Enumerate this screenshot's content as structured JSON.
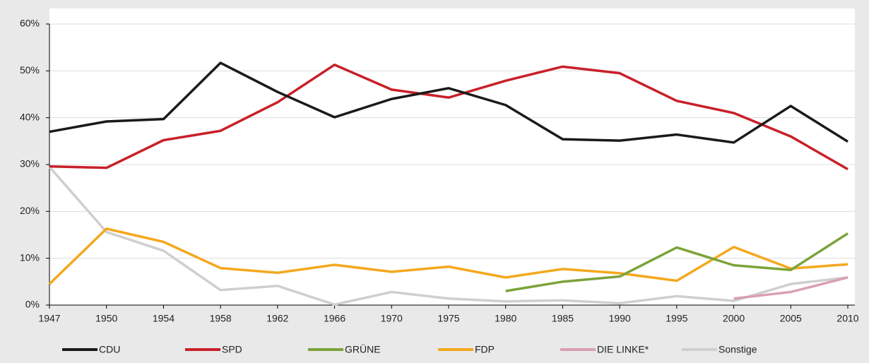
{
  "chart_data": {
    "type": "line",
    "categories": [
      "1947",
      "1950",
      "1954",
      "1958",
      "1962",
      "1966",
      "1970",
      "1975",
      "1980",
      "1985",
      "1990",
      "1995",
      "2000",
      "2005",
      "2010"
    ],
    "series": [
      {
        "name": "CDU",
        "color": "#1a1a1a",
        "values": [
          37,
          39.2,
          39.7,
          51.7,
          45.5,
          40.1,
          44,
          46.3,
          42.7,
          35.4,
          35.1,
          36.4,
          34.7,
          42.5,
          34.9
        ]
      },
      {
        "name": "SPD",
        "color": "#c8202a",
        "values": [
          29.6,
          29.3,
          35.2,
          37.2,
          43.3,
          51.3,
          46,
          44.3,
          47.9,
          50.9,
          49.5,
          43.6,
          41,
          36,
          29
        ]
      },
      {
        "name": "GRÜNE",
        "color": "#7ca33a",
        "values": [
          null,
          null,
          null,
          null,
          null,
          null,
          null,
          null,
          3,
          5,
          6.1,
          12.3,
          8.5,
          7.5,
          15.3
        ]
      },
      {
        "name": "FDP",
        "color": "#f4a81d",
        "values": [
          4.5,
          16.3,
          13.5,
          7.9,
          6.9,
          8.6,
          7.1,
          8.2,
          5.9,
          7.7,
          6.8,
          5.2,
          12.4,
          7.8,
          8.7
        ]
      },
      {
        "name": "DIE LINKE*",
        "color": "#d9a0b0",
        "values": [
          null,
          null,
          null,
          null,
          null,
          null,
          null,
          null,
          null,
          null,
          null,
          null,
          1.4,
          2.8,
          5.9
        ]
      },
      {
        "name": "Sonstige",
        "color": "#cfcfcf",
        "values": [
          29.5,
          15.6,
          11.6,
          3.2,
          4.1,
          0.1,
          2.8,
          1.4,
          0.8,
          1.0,
          0.4,
          1.9,
          0.9,
          4.5,
          5.9
        ]
      }
    ],
    "ylim": [
      0,
      60
    ],
    "yticks": [
      {
        "value": 0,
        "label": "0%"
      },
      {
        "value": 10,
        "label": "10%"
      },
      {
        "value": 20,
        "label": "20%"
      },
      {
        "value": 30,
        "label": "30%"
      },
      {
        "value": 40,
        "label": "40%"
      },
      {
        "value": 50,
        "label": "50%"
      },
      {
        "value": 60,
        "label": "60%"
      }
    ],
    "grid": true,
    "legend": "bottom"
  }
}
